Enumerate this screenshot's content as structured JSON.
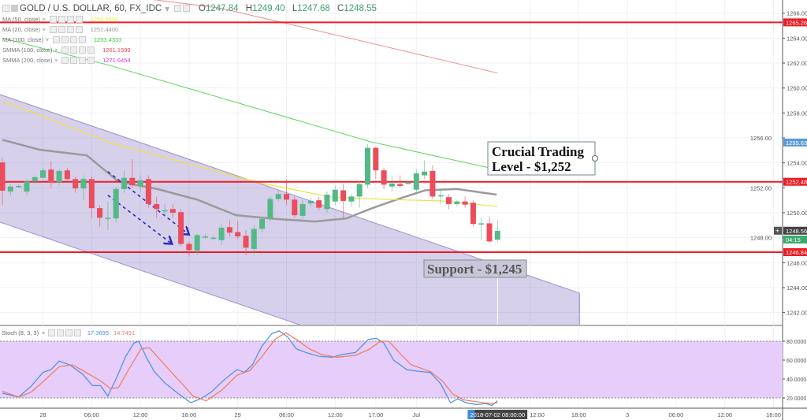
{
  "header": {
    "symbol": "GOLD / U.S. DOLLAR, 60, FX_IDC",
    "ohlc": {
      "o_label": "O",
      "o": "1247.84",
      "h_label": "H",
      "h": "1249.40",
      "l_label": "L",
      "l": "1247.68",
      "c_label": "C",
      "c": "1248.55"
    }
  },
  "indicators": [
    {
      "label": "MA (50, close)",
      "value": "1250.5560",
      "color": "#e8e84a"
    },
    {
      "label": "MA (20, close)",
      "value": "1251.4400",
      "color": "#999999"
    },
    {
      "label": "MA (100, close)",
      "value": "1253.4333",
      "color": "#3ecf3e"
    },
    {
      "label": "SMMA (100, close)",
      "value": "1261.1599",
      "color": "#e04848"
    },
    {
      "label": "SMMA (200, close)",
      "value": "1271.6454",
      "color": "#d63ad6"
    }
  ],
  "annotations": {
    "crucial_line1": "Crucial Trading",
    "crucial_line2": "Level - $1,252",
    "support": "Support - $1,245"
  },
  "stoch": {
    "label": "Stoch (8, 3, 3)",
    "k_value": "17.3695",
    "d_value": "14.7491",
    "k_color": "#4a8fe0",
    "d_color": "#f07a5a"
  },
  "crosshair_label": "2018-07-02 08:00:00",
  "chart_data": [
    {
      "type": "candlestick",
      "title": "GOLD / U.S. DOLLAR, 60, FX_IDC",
      "ylim": [
        1241.0,
        1267.0
      ],
      "y_ticks": [
        "1266.00",
        "1264.00",
        "1262.00",
        "1260.00",
        "1258.00",
        "1256.00",
        "1254.00",
        "1252.00",
        "1250.00",
        "1248.00",
        "1246.00",
        "1244.00",
        "1242.00"
      ],
      "x_ticks": [
        {
          "label": "28",
          "bar": 5
        },
        {
          "label": "06:00",
          "bar": 11
        },
        {
          "label": "12:00",
          "bar": 17
        },
        {
          "label": "18:00",
          "bar": 23
        },
        {
          "label": "29",
          "bar": 29
        },
        {
          "label": "06:00",
          "bar": 35
        },
        {
          "label": "12:00",
          "bar": 41
        },
        {
          "label": "17:00",
          "bar": 46
        },
        {
          "label": "Jul",
          "bar": 51
        },
        {
          "label": "12:00",
          "bar": 65
        },
        {
          "label": "18:00",
          "bar": 71
        },
        {
          "label": "3",
          "bar": 77
        },
        {
          "label": "06:00",
          "bar": 83
        },
        {
          "label": "12:00",
          "bar": 89
        },
        {
          "label": "18:00",
          "bar": 95
        }
      ],
      "grid": true,
      "colors": {
        "up": "#53b987",
        "down": "#eb4d5c"
      },
      "candles_ohlc": [
        [
          1254.04,
          1254.4,
          1250.6,
          1251.77
        ],
        [
          1251.7,
          1252.3,
          1251.4,
          1252.1
        ],
        [
          1252.15,
          1252.3,
          1252.0,
          1252.15
        ],
        [
          1251.7,
          1252.7,
          1251.4,
          1252.5
        ],
        [
          1252.5,
          1253.0,
          1252.3,
          1252.85
        ],
        [
          1252.8,
          1253.6,
          1252.6,
          1253.4
        ],
        [
          1253.46,
          1254.1,
          1252.0,
          1252.45
        ],
        [
          1252.45,
          1253.5,
          1252.2,
          1253.35
        ],
        [
          1253.4,
          1253.6,
          1252.5,
          1252.7
        ],
        [
          1252.7,
          1252.9,
          1251.6,
          1251.95
        ],
        [
          1251.95,
          1253.0,
          1251.0,
          1252.7
        ],
        [
          1252.7,
          1252.9,
          1249.6,
          1250.37
        ],
        [
          1250.37,
          1250.6,
          1248.9,
          1249.6
        ],
        [
          1249.6,
          1250.9,
          1248.6,
          1249.6
        ],
        [
          1249.55,
          1252.1,
          1249.2,
          1251.9
        ],
        [
          1251.9,
          1253.4,
          1251.6,
          1252.8
        ],
        [
          1252.8,
          1254.3,
          1252.0,
          1252.2
        ],
        [
          1252.15,
          1253.0,
          1251.7,
          1252.6
        ],
        [
          1252.7,
          1253.0,
          1250.4,
          1250.7
        ],
        [
          1250.7,
          1251.3,
          1249.6,
          1250.3
        ],
        [
          1250.2,
          1250.7,
          1249.7,
          1250.2
        ],
        [
          1250.3,
          1250.7,
          1249.6,
          1250.0
        ],
        [
          1250.05,
          1250.3,
          1247.3,
          1247.5
        ],
        [
          1247.5,
          1247.7,
          1246.5,
          1247.0
        ],
        [
          1246.97,
          1248.3,
          1246.6,
          1248.2
        ],
        [
          1248.1,
          1248.3,
          1247.9,
          1248.1
        ],
        [
          1248.0,
          1248.2,
          1247.8,
          1248.0
        ],
        [
          1247.8,
          1249.1,
          1247.4,
          1248.8
        ],
        [
          1248.85,
          1249.4,
          1248.1,
          1248.4
        ],
        [
          1248.45,
          1249.3,
          1247.9,
          1248.1
        ],
        [
          1248.15,
          1248.6,
          1246.6,
          1247.2
        ],
        [
          1247.1,
          1249.0,
          1246.6,
          1248.7
        ],
        [
          1248.7,
          1249.7,
          1248.4,
          1249.5
        ],
        [
          1249.55,
          1251.3,
          1249.3,
          1251.1
        ],
        [
          1251.1,
          1251.8,
          1250.9,
          1251.5
        ],
        [
          1251.5,
          1252.7,
          1250.6,
          1251.05
        ],
        [
          1251.05,
          1251.3,
          1249.6,
          1249.8
        ],
        [
          1249.75,
          1251.0,
          1249.5,
          1250.7
        ],
        [
          1250.75,
          1251.2,
          1250.5,
          1250.95
        ],
        [
          1251.0,
          1251.3,
          1250.2,
          1250.4
        ],
        [
          1250.3,
          1251.7,
          1250.0,
          1251.45
        ],
        [
          1250.9,
          1252.2,
          1250.6,
          1251.85
        ],
        [
          1251.8,
          1252.3,
          1249.6,
          1250.95
        ],
        [
          1250.9,
          1251.5,
          1250.5,
          1251.3
        ],
        [
          1251.3,
          1252.5,
          1250.4,
          1252.3
        ],
        [
          1252.25,
          1255.5,
          1252.0,
          1255.2
        ],
        [
          1255.2,
          1255.3,
          1252.7,
          1253.4
        ],
        [
          1253.4,
          1253.6,
          1251.9,
          1252.25
        ],
        [
          1252.1,
          1252.9,
          1251.7,
          1252.35
        ],
        [
          1252.3,
          1253.0,
          1252.0,
          1252.15
        ],
        [
          1252.4,
          1252.5,
          1252.3,
          1252.4
        ],
        [
          1251.85,
          1253.5,
          1251.5,
          1253.15
        ],
        [
          1253.0,
          1254.2,
          1252.7,
          1253.3
        ],
        [
          1253.35,
          1253.8,
          1251.1,
          1251.3
        ],
        [
          1251.4,
          1251.9,
          1250.7,
          1251.4
        ],
        [
          1251.25,
          1251.5,
          1250.3,
          1250.7
        ],
        [
          1250.7,
          1251.0,
          1250.5,
          1250.9
        ],
        [
          1250.9,
          1251.3,
          1250.4,
          1250.65
        ],
        [
          1250.8,
          1251.0,
          1248.9,
          1249.1
        ],
        [
          1249.15,
          1249.6,
          1247.8,
          1249.15
        ],
        [
          1249.15,
          1249.7,
          1247.6,
          1247.7
        ],
        [
          1247.84,
          1249.4,
          1247.68,
          1248.55
        ]
      ],
      "moving_averages": [
        {
          "name": "MA (20, close)",
          "color": "#9a9a9a",
          "width": 2.5,
          "points": [
            [
              0,
              1255.85
            ],
            [
              4.6,
              1255.05
            ],
            [
              10.4,
              1254.6
            ],
            [
              14.3,
              1252.5
            ],
            [
              19.1,
              1251.9
            ],
            [
              24,
              1251.05
            ],
            [
              28.8,
              1249.8
            ],
            [
              33.7,
              1249.5
            ],
            [
              38.5,
              1249.3
            ],
            [
              42.4,
              1249.55
            ],
            [
              45.3,
              1250.3
            ],
            [
              48.3,
              1251.0
            ],
            [
              52.1,
              1251.8
            ],
            [
              56,
              1251.9
            ],
            [
              60.9,
              1251.45
            ]
          ]
        },
        {
          "name": "MA (50, close)",
          "color": "#f0e040",
          "width": 1.2,
          "points": [
            [
              0,
              1258.95
            ],
            [
              5.5,
              1257.6
            ],
            [
              13.6,
              1255.55
            ],
            [
              31.7,
              1252.4
            ],
            [
              40.5,
              1251.25
            ],
            [
              48.3,
              1251.05
            ],
            [
              54.1,
              1250.95
            ],
            [
              61,
              1250.5
            ]
          ]
        },
        {
          "name": "MA (100, close)",
          "color": "#5fd65f",
          "width": 1,
          "points": [
            [
              0,
              1264.0
            ],
            [
              13.3,
              1261.8
            ],
            [
              28.8,
              1258.85
            ],
            [
              45.3,
              1255.7
            ],
            [
              60,
              1253.6
            ]
          ]
        },
        {
          "name": "SMMA (100, close)",
          "color": "#f08a8a",
          "width": 1,
          "points": [
            [
              17.2,
              1267.2
            ],
            [
              26.9,
              1266.4
            ],
            [
              43.4,
              1263.9
            ],
            [
              61,
              1261.2
            ]
          ]
        }
      ],
      "horizontal_levels": [
        {
          "price": 1265.26,
          "label": "1265.26",
          "color": "#ee1c24"
        },
        {
          "price": 1252.48,
          "label": "1252.48",
          "color": "#ee1c24"
        },
        {
          "price": 1246.84,
          "label": "1246.84",
          "color": "#ee1c24"
        }
      ],
      "price_badges": [
        {
          "price": 1255.63,
          "label": "1255.63",
          "color": "#5b9bd5"
        },
        {
          "price": 1248.56,
          "label": "1248.56",
          "color": "#444444"
        },
        {
          "price": 1247.85,
          "label": "04:15",
          "color": "#3faa6f"
        }
      ],
      "channel": {
        "upper": [
          [
            -0.3,
            1259.48
          ],
          [
            71.1,
            1243.56
          ]
        ],
        "lower": [
          [
            -0.3,
            1249.25
          ],
          [
            71.1,
            1233.33
          ]
        ],
        "fill": "rgba(120,100,190,0.30)",
        "stroke": "#9c8fd0"
      },
      "arrows": [
        {
          "from": [
            13,
            1253.3
          ],
          "to": [
            23,
            1248.25
          ],
          "color": "#2828c8"
        },
        {
          "from": [
            13,
            1251.4
          ],
          "to": [
            20.9,
            1247.5
          ],
          "color": "#2828c8"
        }
      ],
      "crosshair_bar": 61
    },
    {
      "type": "line",
      "title": "Stoch (8, 3, 3)",
      "ylim": [
        10,
        95
      ],
      "y_ticks": [
        "80.0000",
        "60.0000",
        "40.0000",
        "20.0000"
      ],
      "bands": [
        20,
        80
      ],
      "band_fill": "#e6cdfa",
      "series": [
        {
          "name": "%K",
          "color": "#4a8fe0",
          "points": [
            [
              0,
              25
            ],
            [
              2,
              21
            ],
            [
              3.5,
              32
            ],
            [
              5,
              47
            ],
            [
              6,
              50
            ],
            [
              7,
              59
            ],
            [
              8.3,
              55
            ],
            [
              9.9,
              45
            ],
            [
              11.1,
              33
            ],
            [
              12.1,
              33
            ],
            [
              13,
              22
            ],
            [
              14,
              40
            ],
            [
              15.2,
              64
            ],
            [
              16.2,
              78
            ],
            [
              16.8,
              80
            ],
            [
              17.8,
              62
            ],
            [
              18.7,
              48
            ],
            [
              20,
              36
            ],
            [
              21.6,
              25
            ],
            [
              23.2,
              15
            ],
            [
              24.4,
              19
            ],
            [
              25.7,
              26
            ],
            [
              27.3,
              39
            ],
            [
              28.9,
              50
            ],
            [
              29.8,
              47
            ],
            [
              30.8,
              55
            ],
            [
              32,
              75
            ],
            [
              33.2,
              88
            ],
            [
              34.1,
              91
            ],
            [
              35.2,
              84
            ],
            [
              36.2,
              72
            ],
            [
              37.4,
              68
            ],
            [
              39,
              64
            ],
            [
              40.6,
              63
            ],
            [
              41.9,
              66
            ],
            [
              43.5,
              68
            ],
            [
              45.1,
              82
            ],
            [
              46.1,
              83
            ],
            [
              47,
              78
            ],
            [
              48.2,
              60
            ],
            [
              49.8,
              50
            ],
            [
              51.4,
              48
            ],
            [
              52.7,
              47
            ],
            [
              54,
              35
            ],
            [
              55.2,
              15
            ],
            [
              56.1,
              19
            ],
            [
              57.1,
              15
            ],
            [
              58.4,
              13
            ],
            [
              59.6,
              14
            ],
            [
              60.3,
              12
            ],
            [
              61,
              17
            ]
          ]
        },
        {
          "name": "%D",
          "color": "#f07a5a",
          "points": [
            [
              0,
              27
            ],
            [
              2,
              21
            ],
            [
              3.5,
              26
            ],
            [
              5,
              37
            ],
            [
              7,
              53
            ],
            [
              8.6,
              55
            ],
            [
              9.9,
              49
            ],
            [
              12.1,
              38
            ],
            [
              13.3,
              30
            ],
            [
              14.3,
              31
            ],
            [
              15.9,
              55
            ],
            [
              17.1,
              72
            ],
            [
              18.1,
              73
            ],
            [
              20,
              55
            ],
            [
              21.6,
              40
            ],
            [
              23.5,
              22
            ],
            [
              25.1,
              17
            ],
            [
              27,
              28
            ],
            [
              28.9,
              44
            ],
            [
              30.5,
              49
            ],
            [
              32,
              64
            ],
            [
              33.6,
              82
            ],
            [
              34.9,
              89
            ],
            [
              36.2,
              82
            ],
            [
              37.8,
              72
            ],
            [
              39.3,
              66
            ],
            [
              41.2,
              63
            ],
            [
              43.5,
              65
            ],
            [
              45.1,
              71
            ],
            [
              46.6,
              80
            ],
            [
              47.6,
              80
            ],
            [
              49.2,
              65
            ],
            [
              50.4,
              55
            ],
            [
              52.7,
              48
            ],
            [
              54.2,
              38
            ],
            [
              55.5,
              24
            ],
            [
              56.8,
              18
            ],
            [
              58.4,
              16
            ],
            [
              60.3,
              14
            ],
            [
              61,
              15
            ]
          ]
        }
      ]
    }
  ]
}
